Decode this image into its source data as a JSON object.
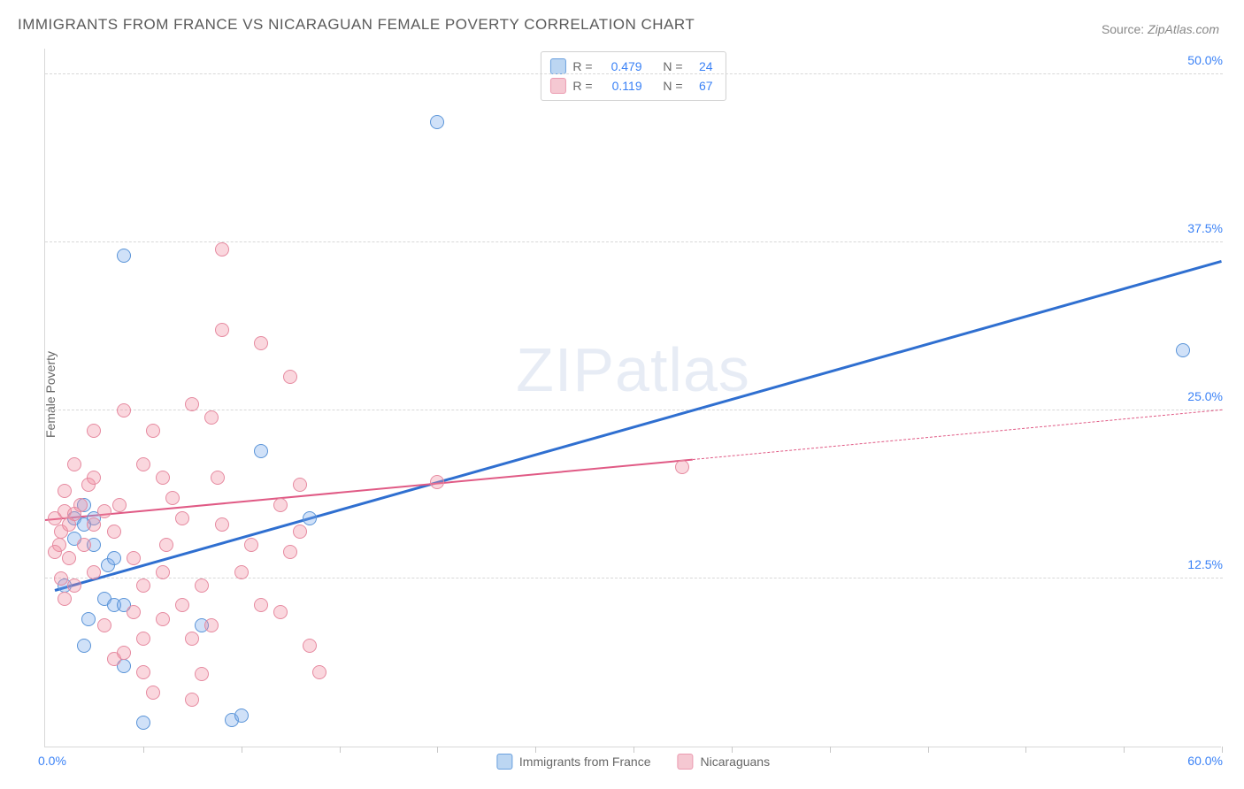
{
  "title": "IMMIGRANTS FROM FRANCE VS NICARAGUAN FEMALE POVERTY CORRELATION CHART",
  "source_prefix": "Source: ",
  "source_name": "ZipAtlas.com",
  "y_axis_label": "Female Poverty",
  "watermark_a": "ZIP",
  "watermark_b": "atlas",
  "chart": {
    "type": "scatter-correlation",
    "background_color": "#ffffff",
    "grid_color": "#d8d8d8",
    "axis_color": "#d8d8d8",
    "label_color": "#3b82f6",
    "xlim": [
      0,
      60
    ],
    "ylim": [
      0,
      52
    ],
    "x_tick_positions": [
      0,
      5,
      10,
      15,
      20,
      25,
      30,
      35,
      40,
      45,
      50,
      55,
      60
    ],
    "y_gridlines": [
      12.5,
      25.0,
      37.5,
      50.0
    ],
    "y_grid_labels": [
      "12.5%",
      "25.0%",
      "37.5%",
      "50.0%"
    ],
    "x_min_label": "0.0%",
    "x_max_label": "60.0%",
    "point_radius": 8,
    "point_border_width": 1.5,
    "series": [
      {
        "name": "Immigrants from France",
        "short": "france",
        "fill": "rgba(120,170,235,0.35)",
        "stroke": "#5a94d8",
        "swatch_fill": "#bcd6f2",
        "swatch_border": "#6aa0de",
        "R": "0.479",
        "N": "24",
        "trend": {
          "x1": 0.5,
          "y1": 11.5,
          "x2": 60,
          "y2": 36.0,
          "color": "#2f6fd0",
          "width": 3,
          "dash": false,
          "ext_x2": 60,
          "ext_y2": 36.0
        },
        "points": [
          [
            1.5,
            17
          ],
          [
            2.5,
            17
          ],
          [
            1,
            12
          ],
          [
            3,
            11
          ],
          [
            2.2,
            9.5
          ],
          [
            3.5,
            10.5
          ],
          [
            4,
            10.5
          ],
          [
            4,
            36.5
          ],
          [
            4,
            6
          ],
          [
            2,
            7.5
          ],
          [
            5,
            1.8
          ],
          [
            9.5,
            2
          ],
          [
            8,
            9
          ],
          [
            11,
            22
          ],
          [
            13.5,
            17
          ],
          [
            20,
            46.5
          ],
          [
            10,
            2.3
          ],
          [
            3.2,
            13.5
          ],
          [
            2,
            16.5
          ],
          [
            2.5,
            15
          ],
          [
            2,
            18
          ],
          [
            3.5,
            14
          ],
          [
            1.5,
            15.5
          ],
          [
            58,
            29.5
          ]
        ]
      },
      {
        "name": "Nicaguans_dummy",
        "display_name": "Nicaraguans",
        "short": "nicaragua",
        "fill": "rgba(240,140,160,0.35)",
        "stroke": "#e68aa0",
        "swatch_fill": "#f5c8d2",
        "swatch_border": "#eb9ab0",
        "R": "0.119",
        "N": "67",
        "trend": {
          "x1": 0,
          "y1": 16.8,
          "x2": 33,
          "y2": 21.3,
          "color": "#e05a85",
          "width": 2.5,
          "dash": false,
          "ext_x2": 60,
          "ext_y2": 25.0
        },
        "points": [
          [
            0.8,
            16
          ],
          [
            0.5,
            17
          ],
          [
            1,
            17.5
          ],
          [
            0.7,
            15
          ],
          [
            1.2,
            16.5
          ],
          [
            1.5,
            17.3
          ],
          [
            0.5,
            14.5
          ],
          [
            1,
            19
          ],
          [
            1.8,
            18
          ],
          [
            2.2,
            19.5
          ],
          [
            1.5,
            21
          ],
          [
            2.5,
            20
          ],
          [
            1.2,
            14
          ],
          [
            2,
            15
          ],
          [
            0.8,
            12.5
          ],
          [
            1.5,
            12
          ],
          [
            1,
            11
          ],
          [
            2.5,
            16.5
          ],
          [
            3,
            17.5
          ],
          [
            3.8,
            18
          ],
          [
            3.5,
            16
          ],
          [
            2.5,
            23.5
          ],
          [
            4,
            25
          ],
          [
            5,
            21
          ],
          [
            5.5,
            23.5
          ],
          [
            6,
            20
          ],
          [
            6.5,
            18.5
          ],
          [
            7,
            17
          ],
          [
            6.2,
            15
          ],
          [
            7.5,
            25.5
          ],
          [
            8.5,
            24.5
          ],
          [
            8.8,
            20
          ],
          [
            9,
            37
          ],
          [
            9,
            31
          ],
          [
            11,
            30
          ],
          [
            12.5,
            27.5
          ],
          [
            14,
            5.5
          ],
          [
            13.5,
            7.5
          ],
          [
            12,
            10
          ],
          [
            11,
            10.5
          ],
          [
            12.5,
            14.5
          ],
          [
            13,
            16
          ],
          [
            8.5,
            9
          ],
          [
            7,
            10.5
          ],
          [
            7.5,
            8
          ],
          [
            6,
            9.5
          ],
          [
            5,
            8
          ],
          [
            4,
            7
          ],
          [
            3.5,
            6.5
          ],
          [
            3,
            9
          ],
          [
            4.5,
            10
          ],
          [
            5,
            12
          ],
          [
            5.5,
            4
          ],
          [
            5,
            5.5
          ],
          [
            7.5,
            3.5
          ],
          [
            8,
            5.4
          ],
          [
            10,
            13
          ],
          [
            10.5,
            15
          ],
          [
            12,
            18
          ],
          [
            13,
            19.5
          ],
          [
            20,
            19.7
          ],
          [
            32.5,
            20.8
          ],
          [
            2.5,
            13
          ],
          [
            4.5,
            14
          ],
          [
            6,
            13
          ],
          [
            8,
            12
          ],
          [
            9,
            16.5
          ]
        ]
      }
    ]
  },
  "legend_labels": {
    "R": "R =",
    "N": "N ="
  },
  "bottom_legend": [
    {
      "label": "Immigrants from France",
      "swatch_fill": "#bcd6f2",
      "swatch_border": "#6aa0de"
    },
    {
      "label": "Nicaraguans",
      "swatch_fill": "#f5c8d2",
      "swatch_border": "#eb9ab0"
    }
  ]
}
